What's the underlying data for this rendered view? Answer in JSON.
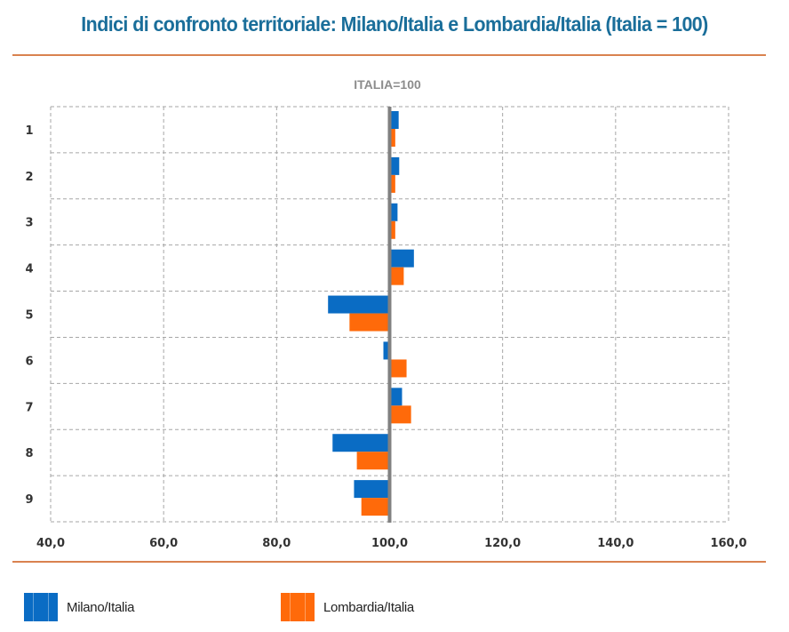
{
  "page": {
    "title": "Indici di confronto territoriale: Milano/Italia e Lombardia/Italia (Italia = 100)"
  },
  "chart_data": {
    "type": "bar",
    "orientation": "horizontal",
    "title": "ITALIA=100",
    "xlabel": "",
    "ylabel": "",
    "baseline": 100,
    "xlim": [
      40,
      160
    ],
    "x_ticks": [
      40,
      60,
      80,
      100,
      120,
      140,
      160
    ],
    "x_tick_labels": [
      "40,0",
      "60,0",
      "80,0",
      "100,0",
      "120,0",
      "140,0",
      "160,0"
    ],
    "categories": [
      "1",
      "2",
      "3",
      "4",
      "5",
      "6",
      "7",
      "8",
      "9"
    ],
    "grid": true,
    "legend_position": "bottom",
    "series": [
      {
        "name": "Milano/Italia",
        "color": "#0a6cc4",
        "values": [
          101.6,
          101.7,
          101.4,
          104.3,
          89.1,
          98.9,
          102.2,
          89.9,
          93.7
        ]
      },
      {
        "name": "Lombardia/Italia",
        "color": "#ff6a0a",
        "values": [
          101.0,
          101.0,
          101.0,
          102.5,
          92.9,
          103.0,
          103.8,
          94.2,
          95.0
        ]
      }
    ],
    "baseline_color": "#808080",
    "grid_color": "#a6a6a6"
  }
}
